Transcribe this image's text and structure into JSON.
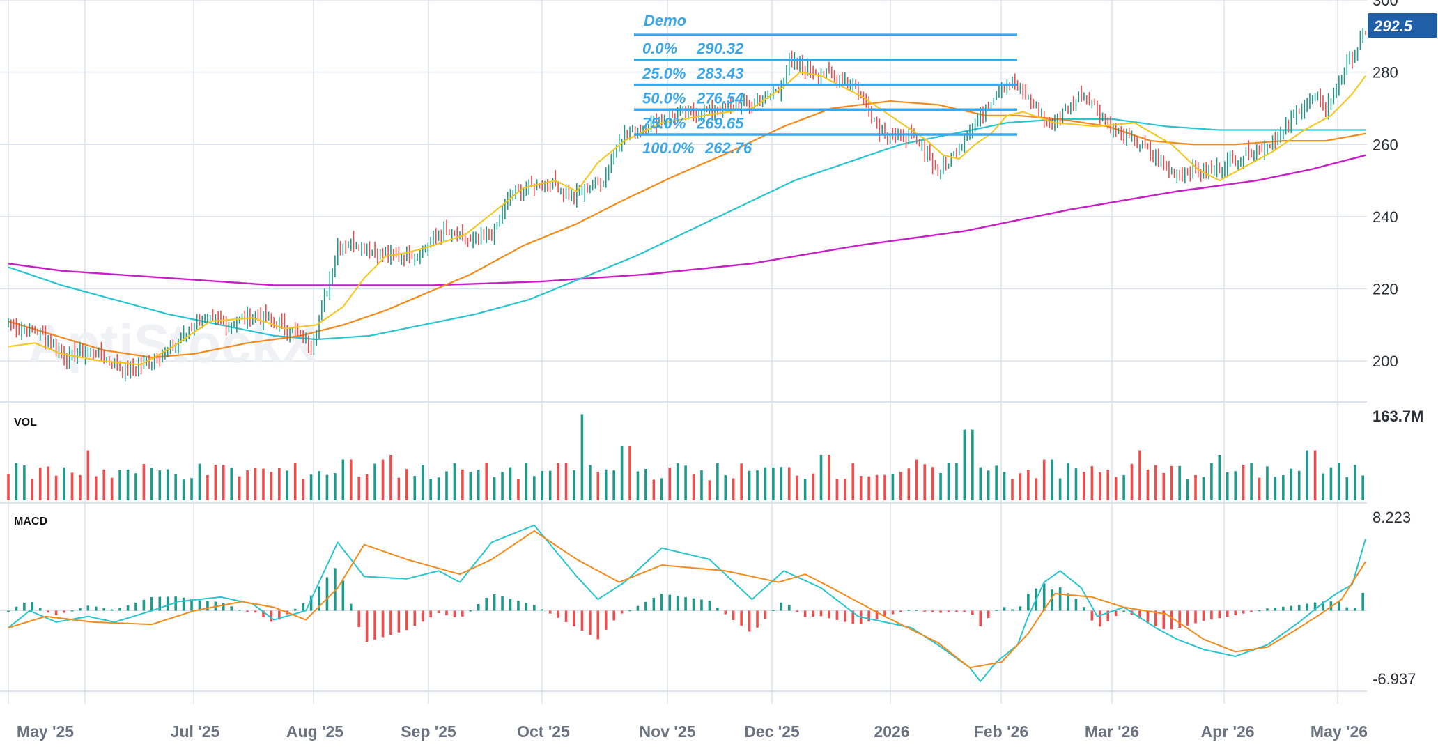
{
  "chart_data": {
    "type": "line",
    "price_panel": {
      "ylim": [
        190,
        300
      ],
      "y_ticks": [
        200,
        220,
        240,
        260,
        280,
        300
      ],
      "last_price_label": "292.5",
      "watermark": "AptiStockX"
    },
    "volume_panel": {
      "label": "VOL",
      "max_label": "163.7M"
    },
    "macd_panel": {
      "label": "MACD",
      "max_label": "8.223",
      "min_label": "-6.937",
      "ylim": [
        -6.937,
        8.223
      ]
    },
    "x_labels": [
      "May '25",
      "Jul '25",
      "Aug '25",
      "Sep '25",
      "Oct '25",
      "Nov '25",
      "Dec '25",
      "2026",
      "Feb '26",
      "Mar '26",
      "Apr '26",
      "May '26"
    ],
    "fibonacci": {
      "name": "Demo",
      "levels": [
        {
          "label": "0.0%",
          "value": 290.32,
          "text": "290.32"
        },
        {
          "label": "25.0%",
          "value": 283.43,
          "text": "283.43"
        },
        {
          "label": "50.0%",
          "value": 276.54,
          "text": "276.54"
        },
        {
          "label": "75.0%",
          "value": 269.65,
          "text": "269.65"
        },
        {
          "label": "100.0%",
          "value": 262.76,
          "text": "262.76"
        }
      ]
    },
    "series_colors": {
      "ma_short": "#f5c518",
      "ma_mid": "#f28a1c",
      "ma_long": "#29c4d0",
      "ma_longest": "#c81ec8",
      "up": "#1e9a8a",
      "down": "#ef4d4d",
      "macd": "#29c4d0",
      "signal": "#f28a1c",
      "grid": "#dde3ee",
      "accent": "#1f5fa8"
    },
    "close_anchors": [
      [
        0,
        210
      ],
      [
        12,
        208
      ],
      [
        22,
        201
      ],
      [
        32,
        203
      ],
      [
        44,
        197
      ],
      [
        54,
        200
      ],
      [
        64,
        205
      ],
      [
        72,
        212
      ],
      [
        82,
        210
      ],
      [
        92,
        213
      ],
      [
        100,
        211
      ],
      [
        108,
        208
      ],
      [
        114,
        204
      ],
      [
        118,
        214
      ],
      [
        124,
        232
      ],
      [
        130,
        233
      ],
      [
        138,
        230
      ],
      [
        146,
        229
      ],
      [
        154,
        230
      ],
      [
        164,
        236
      ],
      [
        174,
        233
      ],
      [
        182,
        235
      ],
      [
        190,
        247
      ],
      [
        200,
        249
      ],
      [
        206,
        249
      ],
      [
        212,
        245
      ],
      [
        218,
        248
      ],
      [
        224,
        250
      ],
      [
        230,
        262
      ],
      [
        240,
        265
      ],
      [
        250,
        268
      ],
      [
        260,
        269
      ],
      [
        270,
        270
      ],
      [
        280,
        271
      ],
      [
        290,
        275
      ],
      [
        294,
        283
      ],
      [
        300,
        281
      ],
      [
        310,
        279
      ],
      [
        318,
        277
      ],
      [
        324,
        270
      ],
      [
        328,
        264
      ],
      [
        334,
        262
      ],
      [
        340,
        262
      ],
      [
        346,
        258
      ],
      [
        350,
        252
      ],
      [
        356,
        257
      ],
      [
        362,
        264
      ],
      [
        368,
        270
      ],
      [
        374,
        277
      ],
      [
        380,
        276
      ],
      [
        386,
        271
      ],
      [
        392,
        265
      ],
      [
        398,
        269
      ],
      [
        404,
        274
      ],
      [
        408,
        272
      ],
      [
        414,
        266
      ],
      [
        420,
        262
      ],
      [
        426,
        260
      ],
      [
        432,
        256
      ],
      [
        438,
        252
      ],
      [
        444,
        253
      ],
      [
        450,
        252
      ],
      [
        456,
        254
      ],
      [
        462,
        256
      ],
      [
        468,
        258
      ],
      [
        474,
        260
      ],
      [
        480,
        263
      ],
      [
        486,
        270
      ],
      [
        492,
        273
      ],
      [
        496,
        270
      ],
      [
        500,
        276
      ],
      [
        504,
        282
      ],
      [
        508,
        287
      ],
      [
        511,
        291
      ]
    ],
    "macd_anchors": [
      [
        0,
        -1.5
      ],
      [
        8,
        0
      ],
      [
        18,
        -1.0
      ],
      [
        30,
        -0.5
      ],
      [
        40,
        -1.0
      ],
      [
        54,
        0
      ],
      [
        64,
        0.8
      ],
      [
        80,
        1.2
      ],
      [
        92,
        0.6
      ],
      [
        100,
        -0.8
      ],
      [
        112,
        0
      ],
      [
        124,
        6.0
      ],
      [
        134,
        3.0
      ],
      [
        150,
        2.8
      ],
      [
        162,
        3.5
      ],
      [
        170,
        2.5
      ],
      [
        182,
        6.0
      ],
      [
        198,
        7.5
      ],
      [
        214,
        3.0
      ],
      [
        222,
        1.0
      ],
      [
        232,
        2.5
      ],
      [
        246,
        5.5
      ],
      [
        264,
        4.5
      ],
      [
        280,
        1.0
      ],
      [
        292,
        3.5
      ],
      [
        306,
        2.0
      ],
      [
        320,
        -0.5
      ],
      [
        340,
        -1.5
      ],
      [
        350,
        -3.0
      ],
      [
        356,
        -4.0
      ],
      [
        362,
        -5.0
      ],
      [
        366,
        -6.2
      ],
      [
        372,
        -4.5
      ],
      [
        380,
        -3.0
      ],
      [
        384,
        -0.5
      ],
      [
        390,
        2.5
      ],
      [
        396,
        3.5
      ],
      [
        404,
        2.0
      ],
      [
        410,
        -0.5
      ],
      [
        420,
        0.3
      ],
      [
        432,
        -1.5
      ],
      [
        440,
        -2.5
      ],
      [
        450,
        -3.4
      ],
      [
        462,
        -4.0
      ],
      [
        474,
        -3.0
      ],
      [
        486,
        -1.0
      ],
      [
        494,
        0.5
      ],
      [
        500,
        1.5
      ],
      [
        506,
        2.3
      ],
      [
        511,
        6.3
      ]
    ],
    "signal_anchors": [
      [
        0,
        -1.5
      ],
      [
        14,
        -0.5
      ],
      [
        32,
        -1.0
      ],
      [
        54,
        -1.2
      ],
      [
        70,
        0
      ],
      [
        88,
        0.8
      ],
      [
        100,
        0.3
      ],
      [
        112,
        -0.8
      ],
      [
        124,
        2.0
      ],
      [
        134,
        5.8
      ],
      [
        150,
        4.5
      ],
      [
        170,
        3.2
      ],
      [
        182,
        4.5
      ],
      [
        198,
        7.0
      ],
      [
        214,
        4.5
      ],
      [
        230,
        2.5
      ],
      [
        246,
        4.0
      ],
      [
        270,
        3.5
      ],
      [
        290,
        2.5
      ],
      [
        300,
        3.2
      ],
      [
        310,
        2.0
      ],
      [
        330,
        -0.5
      ],
      [
        350,
        -2.8
      ],
      [
        362,
        -5.0
      ],
      [
        374,
        -4.5
      ],
      [
        384,
        -2.0
      ],
      [
        394,
        1.5
      ],
      [
        408,
        1.2
      ],
      [
        420,
        0.3
      ],
      [
        436,
        -0.3
      ],
      [
        450,
        -2.5
      ],
      [
        462,
        -3.6
      ],
      [
        474,
        -3.2
      ],
      [
        486,
        -1.5
      ],
      [
        494,
        -0.3
      ],
      [
        502,
        1.0
      ],
      [
        511,
        4.3
      ]
    ],
    "ma_short_anchors": [
      [
        0,
        204
      ],
      [
        10,
        205
      ],
      [
        20,
        202
      ],
      [
        35,
        200
      ],
      [
        50,
        199
      ],
      [
        62,
        204
      ],
      [
        76,
        211
      ],
      [
        92,
        212
      ],
      [
        104,
        209
      ],
      [
        116,
        210
      ],
      [
        126,
        215
      ],
      [
        134,
        223
      ],
      [
        142,
        229
      ],
      [
        150,
        230
      ],
      [
        160,
        232
      ],
      [
        172,
        235
      ],
      [
        184,
        242
      ],
      [
        194,
        248
      ],
      [
        206,
        250
      ],
      [
        214,
        247
      ],
      [
        222,
        255
      ],
      [
        232,
        261
      ],
      [
        246,
        266
      ],
      [
        262,
        268
      ],
      [
        280,
        270
      ],
      [
        292,
        276
      ],
      [
        298,
        280
      ],
      [
        306,
        279
      ],
      [
        322,
        273
      ],
      [
        336,
        266
      ],
      [
        346,
        261
      ],
      [
        352,
        257
      ],
      [
        358,
        256
      ],
      [
        364,
        260
      ],
      [
        370,
        263
      ],
      [
        376,
        268
      ],
      [
        382,
        269
      ],
      [
        394,
        266
      ],
      [
        410,
        265
      ],
      [
        424,
        266
      ],
      [
        438,
        260
      ],
      [
        448,
        253
      ],
      [
        456,
        250
      ],
      [
        466,
        254
      ],
      [
        476,
        258
      ],
      [
        488,
        264
      ],
      [
        498,
        268
      ],
      [
        506,
        274
      ],
      [
        511,
        279
      ]
    ],
    "ma_mid_anchors": [
      [
        0,
        211
      ],
      [
        18,
        207
      ],
      [
        36,
        203
      ],
      [
        54,
        201
      ],
      [
        70,
        202
      ],
      [
        90,
        205
      ],
      [
        110,
        207
      ],
      [
        126,
        210
      ],
      [
        142,
        214
      ],
      [
        158,
        219
      ],
      [
        174,
        224
      ],
      [
        194,
        232
      ],
      [
        214,
        238
      ],
      [
        230,
        244
      ],
      [
        250,
        251
      ],
      [
        272,
        258
      ],
      [
        292,
        265
      ],
      [
        310,
        270
      ],
      [
        332,
        272
      ],
      [
        350,
        271
      ],
      [
        368,
        268
      ],
      [
        380,
        268
      ],
      [
        396,
        267
      ],
      [
        414,
        265
      ],
      [
        430,
        261
      ],
      [
        446,
        260
      ],
      [
        462,
        260
      ],
      [
        480,
        261
      ],
      [
        496,
        261
      ],
      [
        511,
        263
      ]
    ],
    "ma_long_anchors": [
      [
        0,
        226
      ],
      [
        20,
        221
      ],
      [
        40,
        217
      ],
      [
        60,
        213
      ],
      [
        80,
        210
      ],
      [
        100,
        207
      ],
      [
        116,
        206
      ],
      [
        136,
        207
      ],
      [
        156,
        210
      ],
      [
        176,
        213
      ],
      [
        196,
        217
      ],
      [
        216,
        223
      ],
      [
        236,
        229
      ],
      [
        256,
        236
      ],
      [
        276,
        243
      ],
      [
        296,
        250
      ],
      [
        316,
        255
      ],
      [
        336,
        260
      ],
      [
        356,
        263
      ],
      [
        376,
        266
      ],
      [
        396,
        267
      ],
      [
        416,
        267
      ],
      [
        436,
        265
      ],
      [
        456,
        264
      ],
      [
        476,
        264
      ],
      [
        496,
        264
      ],
      [
        511,
        264
      ]
    ],
    "ma_longest_anchors": [
      [
        0,
        227
      ],
      [
        20,
        225
      ],
      [
        40,
        224
      ],
      [
        60,
        223
      ],
      [
        80,
        222
      ],
      [
        100,
        221
      ],
      [
        120,
        221
      ],
      [
        160,
        221
      ],
      [
        200,
        222
      ],
      [
        240,
        224
      ],
      [
        280,
        227
      ],
      [
        320,
        232
      ],
      [
        360,
        236
      ],
      [
        400,
        242
      ],
      [
        440,
        247
      ],
      [
        470,
        250
      ],
      [
        490,
        253
      ],
      [
        511,
        257
      ]
    ]
  }
}
